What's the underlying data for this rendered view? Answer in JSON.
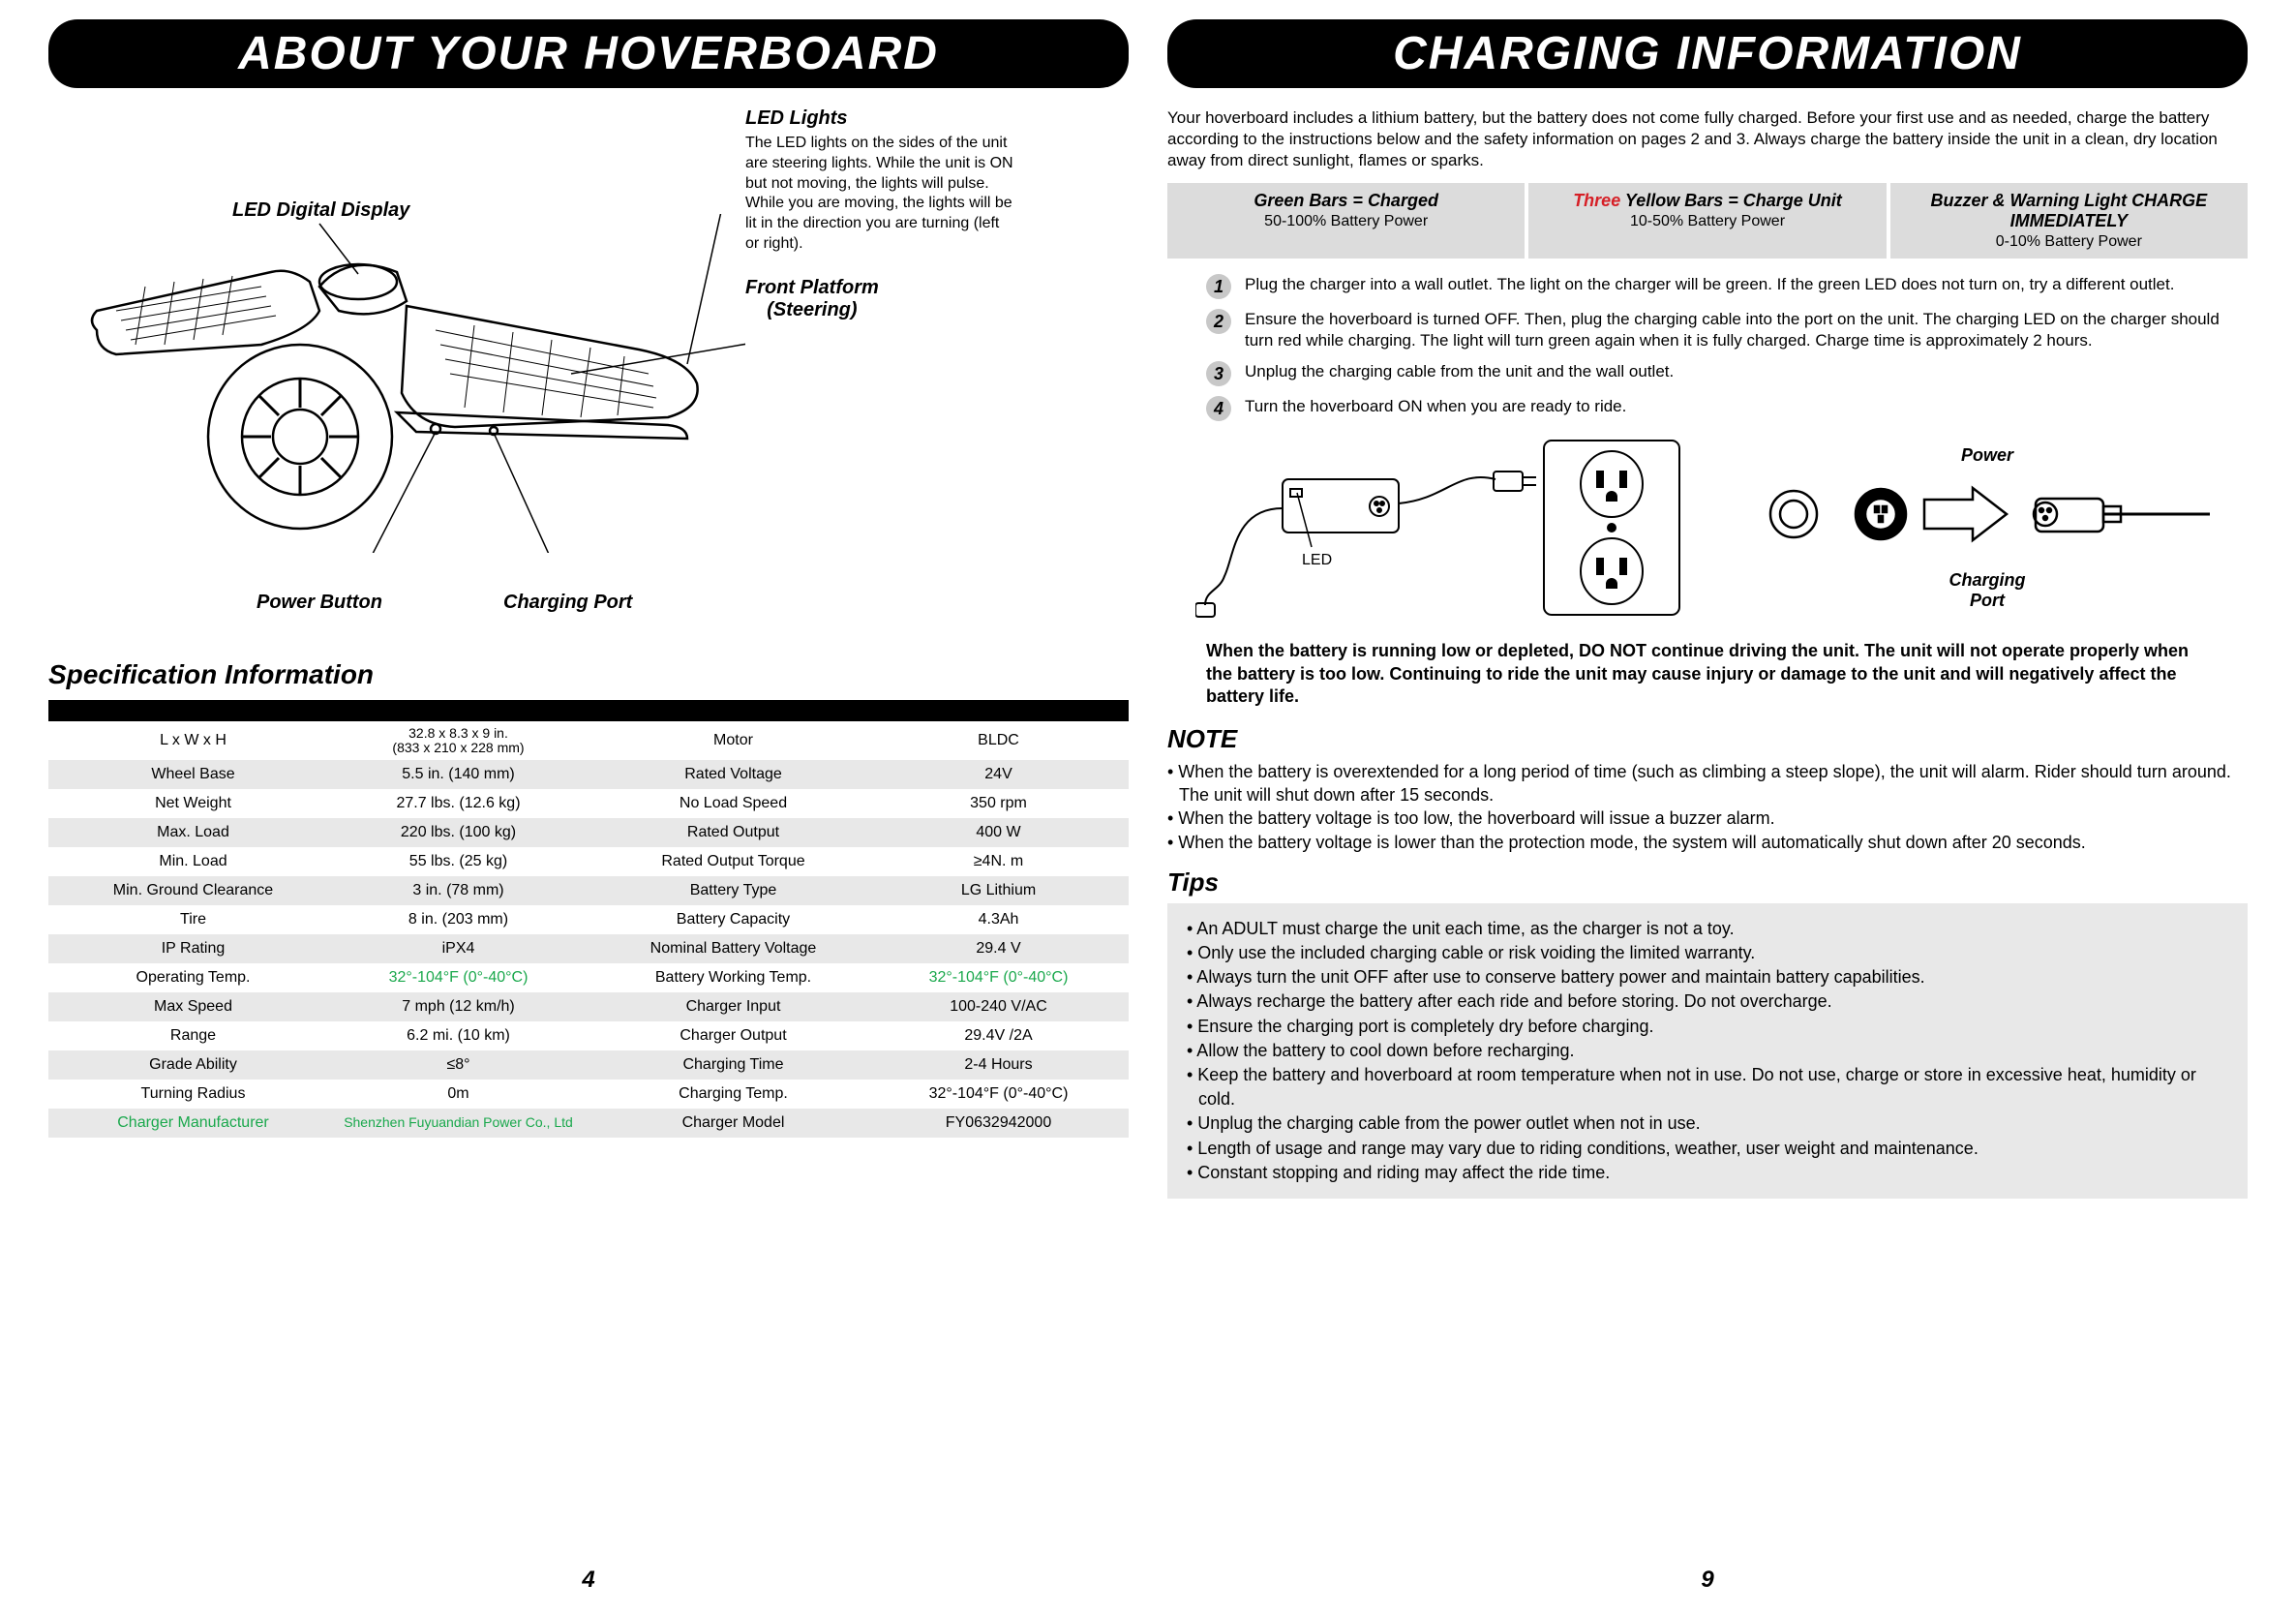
{
  "left": {
    "banner": "ABOUT YOUR HOVERBOARD",
    "callouts": {
      "led_lights": {
        "title": "LED Lights",
        "desc": "The LED lights on the sides of the unit are steering lights.  While the unit is ON but not moving, the lights will pulse. While you are moving, the lights will be lit in the direction you are turning (left or right)."
      },
      "led_display": "LED Digital Display",
      "front_platform_l1": "Front Platform",
      "front_platform_l2": "(Steering)",
      "power_button": "Power Button",
      "charging_port": "Charging Port"
    },
    "spec_heading": "Specification Information",
    "specs_left": [
      {
        "label": "L x W x H",
        "value": "32.8 x 8.3 x 9 in.\n(833 x 210 x 228 mm)"
      },
      {
        "label": "Wheel Base",
        "value": "5.5 in. (140 mm)"
      },
      {
        "label": "Net Weight",
        "value": "27.7 lbs. (12.6 kg)"
      },
      {
        "label": "Max. Load",
        "value": "220 lbs. (100 kg)"
      },
      {
        "label": "Min. Load",
        "value": "55 lbs. (25 kg)"
      },
      {
        "label": "Min. Ground Clearance",
        "value": "3 in. (78 mm)"
      },
      {
        "label": "Tire",
        "value": "8 in. (203 mm)"
      },
      {
        "label": "IP Rating",
        "value": "iPX4"
      },
      {
        "label": "Operating Temp.",
        "value": "32°-104°F (0°-40°C)",
        "green": true
      },
      {
        "label": "Max Speed",
        "value": "7 mph (12 km/h)"
      },
      {
        "label": "Range",
        "value": "6.2 mi. (10 km)"
      },
      {
        "label": "Grade Ability",
        "value": "≤8°"
      },
      {
        "label": "Turning Radius",
        "value": "0m"
      },
      {
        "label": "Charger Manufacturer",
        "value": "Shenzhen Fuyuandian Power Co., Ltd",
        "greenBoth": true
      }
    ],
    "specs_right": [
      {
        "label": "Motor",
        "value": "BLDC"
      },
      {
        "label": "Rated Voltage",
        "value": "24V"
      },
      {
        "label": "No Load Speed",
        "value": "350 rpm"
      },
      {
        "label": "Rated Output",
        "value": "400 W"
      },
      {
        "label": "Rated Output Torque",
        "value": "≥4N. m"
      },
      {
        "label": "Battery Type",
        "value": "LG Lithium"
      },
      {
        "label": "Battery Capacity",
        "value": "4.3Ah"
      },
      {
        "label": "Nominal Battery Voltage",
        "value": "29.4 V"
      },
      {
        "label": "Battery Working Temp.",
        "value": "32°-104°F (0°-40°C)",
        "green": true
      },
      {
        "label": "Charger Input",
        "value": "100-240 V/AC"
      },
      {
        "label": "Charger Output",
        "value": "29.4V /2A"
      },
      {
        "label": "Charging Time",
        "value": "2-4 Hours"
      },
      {
        "label": "Charging Temp.",
        "value": "32°-104°F (0°-40°C)"
      },
      {
        "label": "Charger Model",
        "value": "FY0632942000"
      }
    ],
    "page_num": "4"
  },
  "right": {
    "banner": "CHARGING INFORMATION",
    "intro": "Your hoverboard includes a lithium battery, but the battery does not come fully charged. Before your first use and as needed, charge the battery according to the instructions below and the safety information on pages 2 and 3.  Always charge the battery inside the unit in a clean, dry location away from direct sunlight, flames or sparks.",
    "status": [
      {
        "title_pre": "",
        "title_red": "",
        "title": "Green Bars = Charged",
        "sub": "50-100% Battery Power"
      },
      {
        "title_pre": "",
        "title_red": "Three",
        "title": " Yellow Bars = Charge Unit",
        "sub": "10-50% Battery Power"
      },
      {
        "title_pre": "",
        "title_red": "",
        "title": "Buzzer & Warning Light CHARGE IMMEDIATELY",
        "sub": "0-10% Battery Power"
      }
    ],
    "steps": [
      "Plug the charger into a wall outlet. The light on the charger will be green. If the green LED does not turn on, try a different outlet.",
      "Ensure the hoverboard is turned OFF. Then, plug the charging cable into the port on the unit. The charging LED on the charger should turn red while charging. The light will turn green again when it is fully charged. Charge time is approximately 2 hours.",
      "Unplug the charging cable from the unit and the wall outlet.",
      "Turn the hoverboard ON when you are ready to ride."
    ],
    "led_label": "LED",
    "power_label": "Power",
    "charging_port_label_l1": "Charging",
    "charging_port_label_l2": "Port",
    "warning": "When the battery is running low or depleted, DO NOT continue driving the unit. The unit will not operate properly when the battery is too low. Continuing to ride the unit may cause injury or damage to the unit and will negatively affect the battery life.",
    "note_heading": "NOTE",
    "notes": [
      "• When the battery is overextended for a long period of time (such as climbing a steep slope), the unit will alarm. Rider should turn around. The unit will shut down after 15 seconds.",
      "• When the battery voltage is too low, the hoverboard will issue a buzzer alarm.",
      "• When the battery voltage is lower than the protection mode, the system will automatically shut down after 20 seconds."
    ],
    "tips_heading": "Tips",
    "tips": [
      "• An ADULT must charge the unit each time, as the charger is not a toy.",
      "• Only use the included charging cable or risk voiding the limited warranty.",
      "• Always turn the unit OFF after use to conserve battery power and maintain battery capabilities.",
      "• Always recharge the battery after each ride and before storing.  Do not overcharge.",
      "• Ensure the charging port is completely dry before charging.",
      "• Allow the battery to cool down before recharging.",
      "• Keep the battery and hoverboard at room temperature when not in use. Do not use, charge or store in excessive heat, humidity or cold.",
      "• Unplug the charging cable from the power outlet when not in use.",
      "• Length of usage and range may vary due to riding conditions, weather, user weight and maintenance.",
      "• Constant stopping and riding may affect the ride time."
    ],
    "page_num": "9"
  },
  "colors": {
    "banner_bg": "#000000",
    "banner_fg": "#ffffff",
    "row_alt": "#e8e8e8",
    "status_bg": "#dcdcdc",
    "green": "#1aa84c",
    "red": "#d61f26"
  }
}
